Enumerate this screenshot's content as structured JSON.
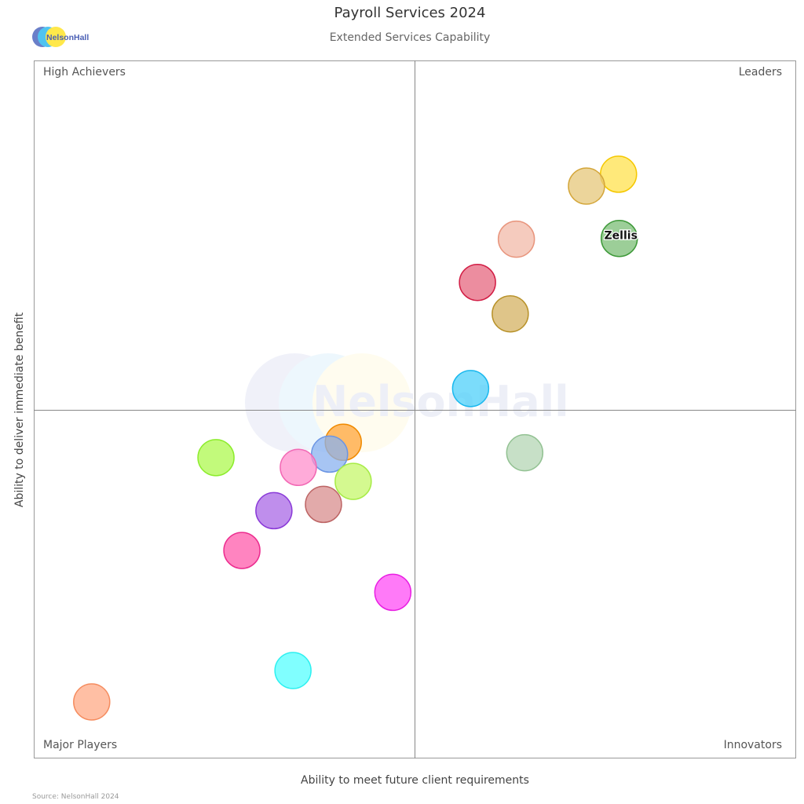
{
  "header": {
    "title": "Payroll Services 2024",
    "subtitle": "Extended Services Capability",
    "logo_text": "NelsonHall"
  },
  "footer": {
    "source": "Source: NelsonHall 2024"
  },
  "watermark_text": "NelsonHall",
  "chart_data": {
    "type": "scatter",
    "title": "Payroll Services 2024",
    "subtitle": "Extended Services Capability",
    "xlabel": "Ability to meet future client requirements",
    "ylabel": "Ability to deliver immediate benefit",
    "xlim": [
      0,
      10
    ],
    "ylim": [
      0,
      10
    ],
    "quadrant_split": {
      "x": 5,
      "y": 5
    },
    "grid": false,
    "quadrants": {
      "top_left": "High Achievers",
      "top_right": "Leaders",
      "bottom_left": "Major Players",
      "bottom_right": "Innovators"
    },
    "points": [
      {
        "label": "",
        "x": 7.67,
        "y": 8.37,
        "color": "#ffe14d",
        "stroke": "#f5c800"
      },
      {
        "label": "",
        "x": 7.25,
        "y": 8.2,
        "color": "#e6c77a",
        "stroke": "#d4a63a"
      },
      {
        "label": "Zellis",
        "x": 7.68,
        "y": 7.45,
        "color": "#7bbd76",
        "stroke": "#3f9a3a"
      },
      {
        "label": "",
        "x": 6.33,
        "y": 7.44,
        "color": "#f2b9a8",
        "stroke": "#e8957d"
      },
      {
        "label": "",
        "x": 5.82,
        "y": 6.82,
        "color": "#e5677f",
        "stroke": "#d21e45"
      },
      {
        "label": "",
        "x": 6.25,
        "y": 6.37,
        "color": "#d4b262",
        "stroke": "#b8922a"
      },
      {
        "label": "",
        "x": 5.73,
        "y": 5.3,
        "color": "#4fd0fa",
        "stroke": "#1ab8ee"
      },
      {
        "label": "",
        "x": 6.44,
        "y": 4.38,
        "color": "#b4d6b4",
        "stroke": "#93c293"
      },
      {
        "label": "",
        "x": 4.06,
        "y": 4.53,
        "color": "#ffa53a",
        "stroke": "#f08a00"
      },
      {
        "label": "",
        "x": 3.88,
        "y": 4.36,
        "color": "#8ab2ef",
        "stroke": "#6b95e4"
      },
      {
        "label": "",
        "x": 2.39,
        "y": 4.31,
        "color": "#adf84f",
        "stroke": "#8cec2c"
      },
      {
        "label": "",
        "x": 3.47,
        "y": 4.17,
        "color": "#ff8fcc",
        "stroke": "#f268b4"
      },
      {
        "label": "",
        "x": 4.19,
        "y": 3.97,
        "color": "#c6f76b",
        "stroke": "#a8ec48"
      },
      {
        "label": "",
        "x": 3.8,
        "y": 3.64,
        "color": "#d88e8e",
        "stroke": "#bd6565"
      },
      {
        "label": "",
        "x": 3.15,
        "y": 3.55,
        "color": "#a968e6",
        "stroke": "#8a3ad8"
      },
      {
        "label": "",
        "x": 2.73,
        "y": 2.98,
        "color": "#ff5bab",
        "stroke": "#ec2d8f"
      },
      {
        "label": "",
        "x": 4.71,
        "y": 2.38,
        "color": "#ff4df6",
        "stroke": "#e81ee2"
      },
      {
        "label": "",
        "x": 3.4,
        "y": 1.26,
        "color": "#55ffff",
        "stroke": "#2ef0f0"
      },
      {
        "label": "",
        "x": 0.76,
        "y": 0.81,
        "color": "#ffa985",
        "stroke": "#f58c5f"
      }
    ]
  }
}
